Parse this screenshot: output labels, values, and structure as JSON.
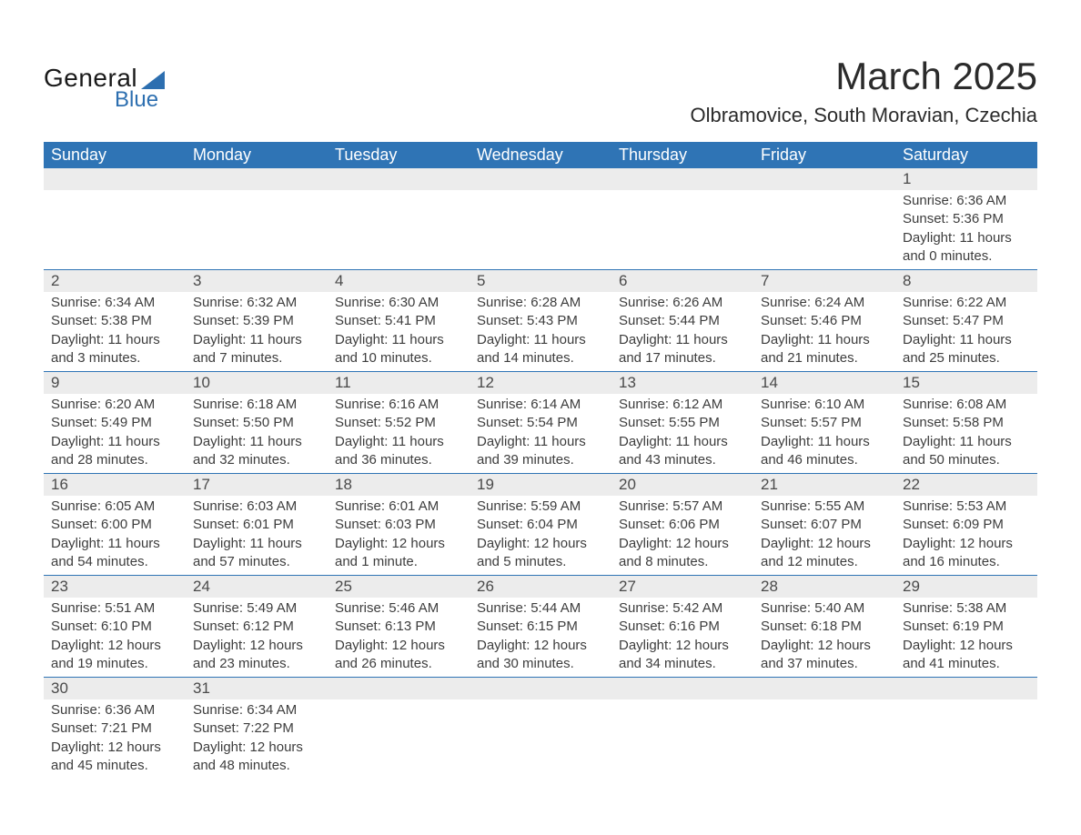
{
  "brand": {
    "top": "General",
    "bottom": "Blue"
  },
  "title": "March 2025",
  "location": "Olbramovice, South Moravian, Czechia",
  "colors": {
    "header_bg": "#2f74b5",
    "header_fg": "#ffffff",
    "stripe_bg": "#ececec",
    "row_border": "#2f74b5",
    "text": "#3a3a3a",
    "logo_accent": "#2d6fb0",
    "page_bg": "#ffffff"
  },
  "typography": {
    "title_fontsize": 42,
    "location_fontsize": 22,
    "header_fontsize": 18,
    "daynum_fontsize": 17,
    "body_fontsize": 15
  },
  "weekdays": [
    "Sunday",
    "Monday",
    "Tuesday",
    "Wednesday",
    "Thursday",
    "Friday",
    "Saturday"
  ],
  "weeks": [
    [
      {
        "n": "",
        "sr": "",
        "ss": "",
        "dl": ""
      },
      {
        "n": "",
        "sr": "",
        "ss": "",
        "dl": ""
      },
      {
        "n": "",
        "sr": "",
        "ss": "",
        "dl": ""
      },
      {
        "n": "",
        "sr": "",
        "ss": "",
        "dl": ""
      },
      {
        "n": "",
        "sr": "",
        "ss": "",
        "dl": ""
      },
      {
        "n": "",
        "sr": "",
        "ss": "",
        "dl": ""
      },
      {
        "n": "1",
        "sr": "Sunrise: 6:36 AM",
        "ss": "Sunset: 5:36 PM",
        "dl": "Daylight: 11 hours and 0 minutes."
      }
    ],
    [
      {
        "n": "2",
        "sr": "Sunrise: 6:34 AM",
        "ss": "Sunset: 5:38 PM",
        "dl": "Daylight: 11 hours and 3 minutes."
      },
      {
        "n": "3",
        "sr": "Sunrise: 6:32 AM",
        "ss": "Sunset: 5:39 PM",
        "dl": "Daylight: 11 hours and 7 minutes."
      },
      {
        "n": "4",
        "sr": "Sunrise: 6:30 AM",
        "ss": "Sunset: 5:41 PM",
        "dl": "Daylight: 11 hours and 10 minutes."
      },
      {
        "n": "5",
        "sr": "Sunrise: 6:28 AM",
        "ss": "Sunset: 5:43 PM",
        "dl": "Daylight: 11 hours and 14 minutes."
      },
      {
        "n": "6",
        "sr": "Sunrise: 6:26 AM",
        "ss": "Sunset: 5:44 PM",
        "dl": "Daylight: 11 hours and 17 minutes."
      },
      {
        "n": "7",
        "sr": "Sunrise: 6:24 AM",
        "ss": "Sunset: 5:46 PM",
        "dl": "Daylight: 11 hours and 21 minutes."
      },
      {
        "n": "8",
        "sr": "Sunrise: 6:22 AM",
        "ss": "Sunset: 5:47 PM",
        "dl": "Daylight: 11 hours and 25 minutes."
      }
    ],
    [
      {
        "n": "9",
        "sr": "Sunrise: 6:20 AM",
        "ss": "Sunset: 5:49 PM",
        "dl": "Daylight: 11 hours and 28 minutes."
      },
      {
        "n": "10",
        "sr": "Sunrise: 6:18 AM",
        "ss": "Sunset: 5:50 PM",
        "dl": "Daylight: 11 hours and 32 minutes."
      },
      {
        "n": "11",
        "sr": "Sunrise: 6:16 AM",
        "ss": "Sunset: 5:52 PM",
        "dl": "Daylight: 11 hours and 36 minutes."
      },
      {
        "n": "12",
        "sr": "Sunrise: 6:14 AM",
        "ss": "Sunset: 5:54 PM",
        "dl": "Daylight: 11 hours and 39 minutes."
      },
      {
        "n": "13",
        "sr": "Sunrise: 6:12 AM",
        "ss": "Sunset: 5:55 PM",
        "dl": "Daylight: 11 hours and 43 minutes."
      },
      {
        "n": "14",
        "sr": "Sunrise: 6:10 AM",
        "ss": "Sunset: 5:57 PM",
        "dl": "Daylight: 11 hours and 46 minutes."
      },
      {
        "n": "15",
        "sr": "Sunrise: 6:08 AM",
        "ss": "Sunset: 5:58 PM",
        "dl": "Daylight: 11 hours and 50 minutes."
      }
    ],
    [
      {
        "n": "16",
        "sr": "Sunrise: 6:05 AM",
        "ss": "Sunset: 6:00 PM",
        "dl": "Daylight: 11 hours and 54 minutes."
      },
      {
        "n": "17",
        "sr": "Sunrise: 6:03 AM",
        "ss": "Sunset: 6:01 PM",
        "dl": "Daylight: 11 hours and 57 minutes."
      },
      {
        "n": "18",
        "sr": "Sunrise: 6:01 AM",
        "ss": "Sunset: 6:03 PM",
        "dl": "Daylight: 12 hours and 1 minute."
      },
      {
        "n": "19",
        "sr": "Sunrise: 5:59 AM",
        "ss": "Sunset: 6:04 PM",
        "dl": "Daylight: 12 hours and 5 minutes."
      },
      {
        "n": "20",
        "sr": "Sunrise: 5:57 AM",
        "ss": "Sunset: 6:06 PM",
        "dl": "Daylight: 12 hours and 8 minutes."
      },
      {
        "n": "21",
        "sr": "Sunrise: 5:55 AM",
        "ss": "Sunset: 6:07 PM",
        "dl": "Daylight: 12 hours and 12 minutes."
      },
      {
        "n": "22",
        "sr": "Sunrise: 5:53 AM",
        "ss": "Sunset: 6:09 PM",
        "dl": "Daylight: 12 hours and 16 minutes."
      }
    ],
    [
      {
        "n": "23",
        "sr": "Sunrise: 5:51 AM",
        "ss": "Sunset: 6:10 PM",
        "dl": "Daylight: 12 hours and 19 minutes."
      },
      {
        "n": "24",
        "sr": "Sunrise: 5:49 AM",
        "ss": "Sunset: 6:12 PM",
        "dl": "Daylight: 12 hours and 23 minutes."
      },
      {
        "n": "25",
        "sr": "Sunrise: 5:46 AM",
        "ss": "Sunset: 6:13 PM",
        "dl": "Daylight: 12 hours and 26 minutes."
      },
      {
        "n": "26",
        "sr": "Sunrise: 5:44 AM",
        "ss": "Sunset: 6:15 PM",
        "dl": "Daylight: 12 hours and 30 minutes."
      },
      {
        "n": "27",
        "sr": "Sunrise: 5:42 AM",
        "ss": "Sunset: 6:16 PM",
        "dl": "Daylight: 12 hours and 34 minutes."
      },
      {
        "n": "28",
        "sr": "Sunrise: 5:40 AM",
        "ss": "Sunset: 6:18 PM",
        "dl": "Daylight: 12 hours and 37 minutes."
      },
      {
        "n": "29",
        "sr": "Sunrise: 5:38 AM",
        "ss": "Sunset: 6:19 PM",
        "dl": "Daylight: 12 hours and 41 minutes."
      }
    ],
    [
      {
        "n": "30",
        "sr": "Sunrise: 6:36 AM",
        "ss": "Sunset: 7:21 PM",
        "dl": "Daylight: 12 hours and 45 minutes."
      },
      {
        "n": "31",
        "sr": "Sunrise: 6:34 AM",
        "ss": "Sunset: 7:22 PM",
        "dl": "Daylight: 12 hours and 48 minutes."
      },
      {
        "n": "",
        "sr": "",
        "ss": "",
        "dl": ""
      },
      {
        "n": "",
        "sr": "",
        "ss": "",
        "dl": ""
      },
      {
        "n": "",
        "sr": "",
        "ss": "",
        "dl": ""
      },
      {
        "n": "",
        "sr": "",
        "ss": "",
        "dl": ""
      },
      {
        "n": "",
        "sr": "",
        "ss": "",
        "dl": ""
      }
    ]
  ]
}
